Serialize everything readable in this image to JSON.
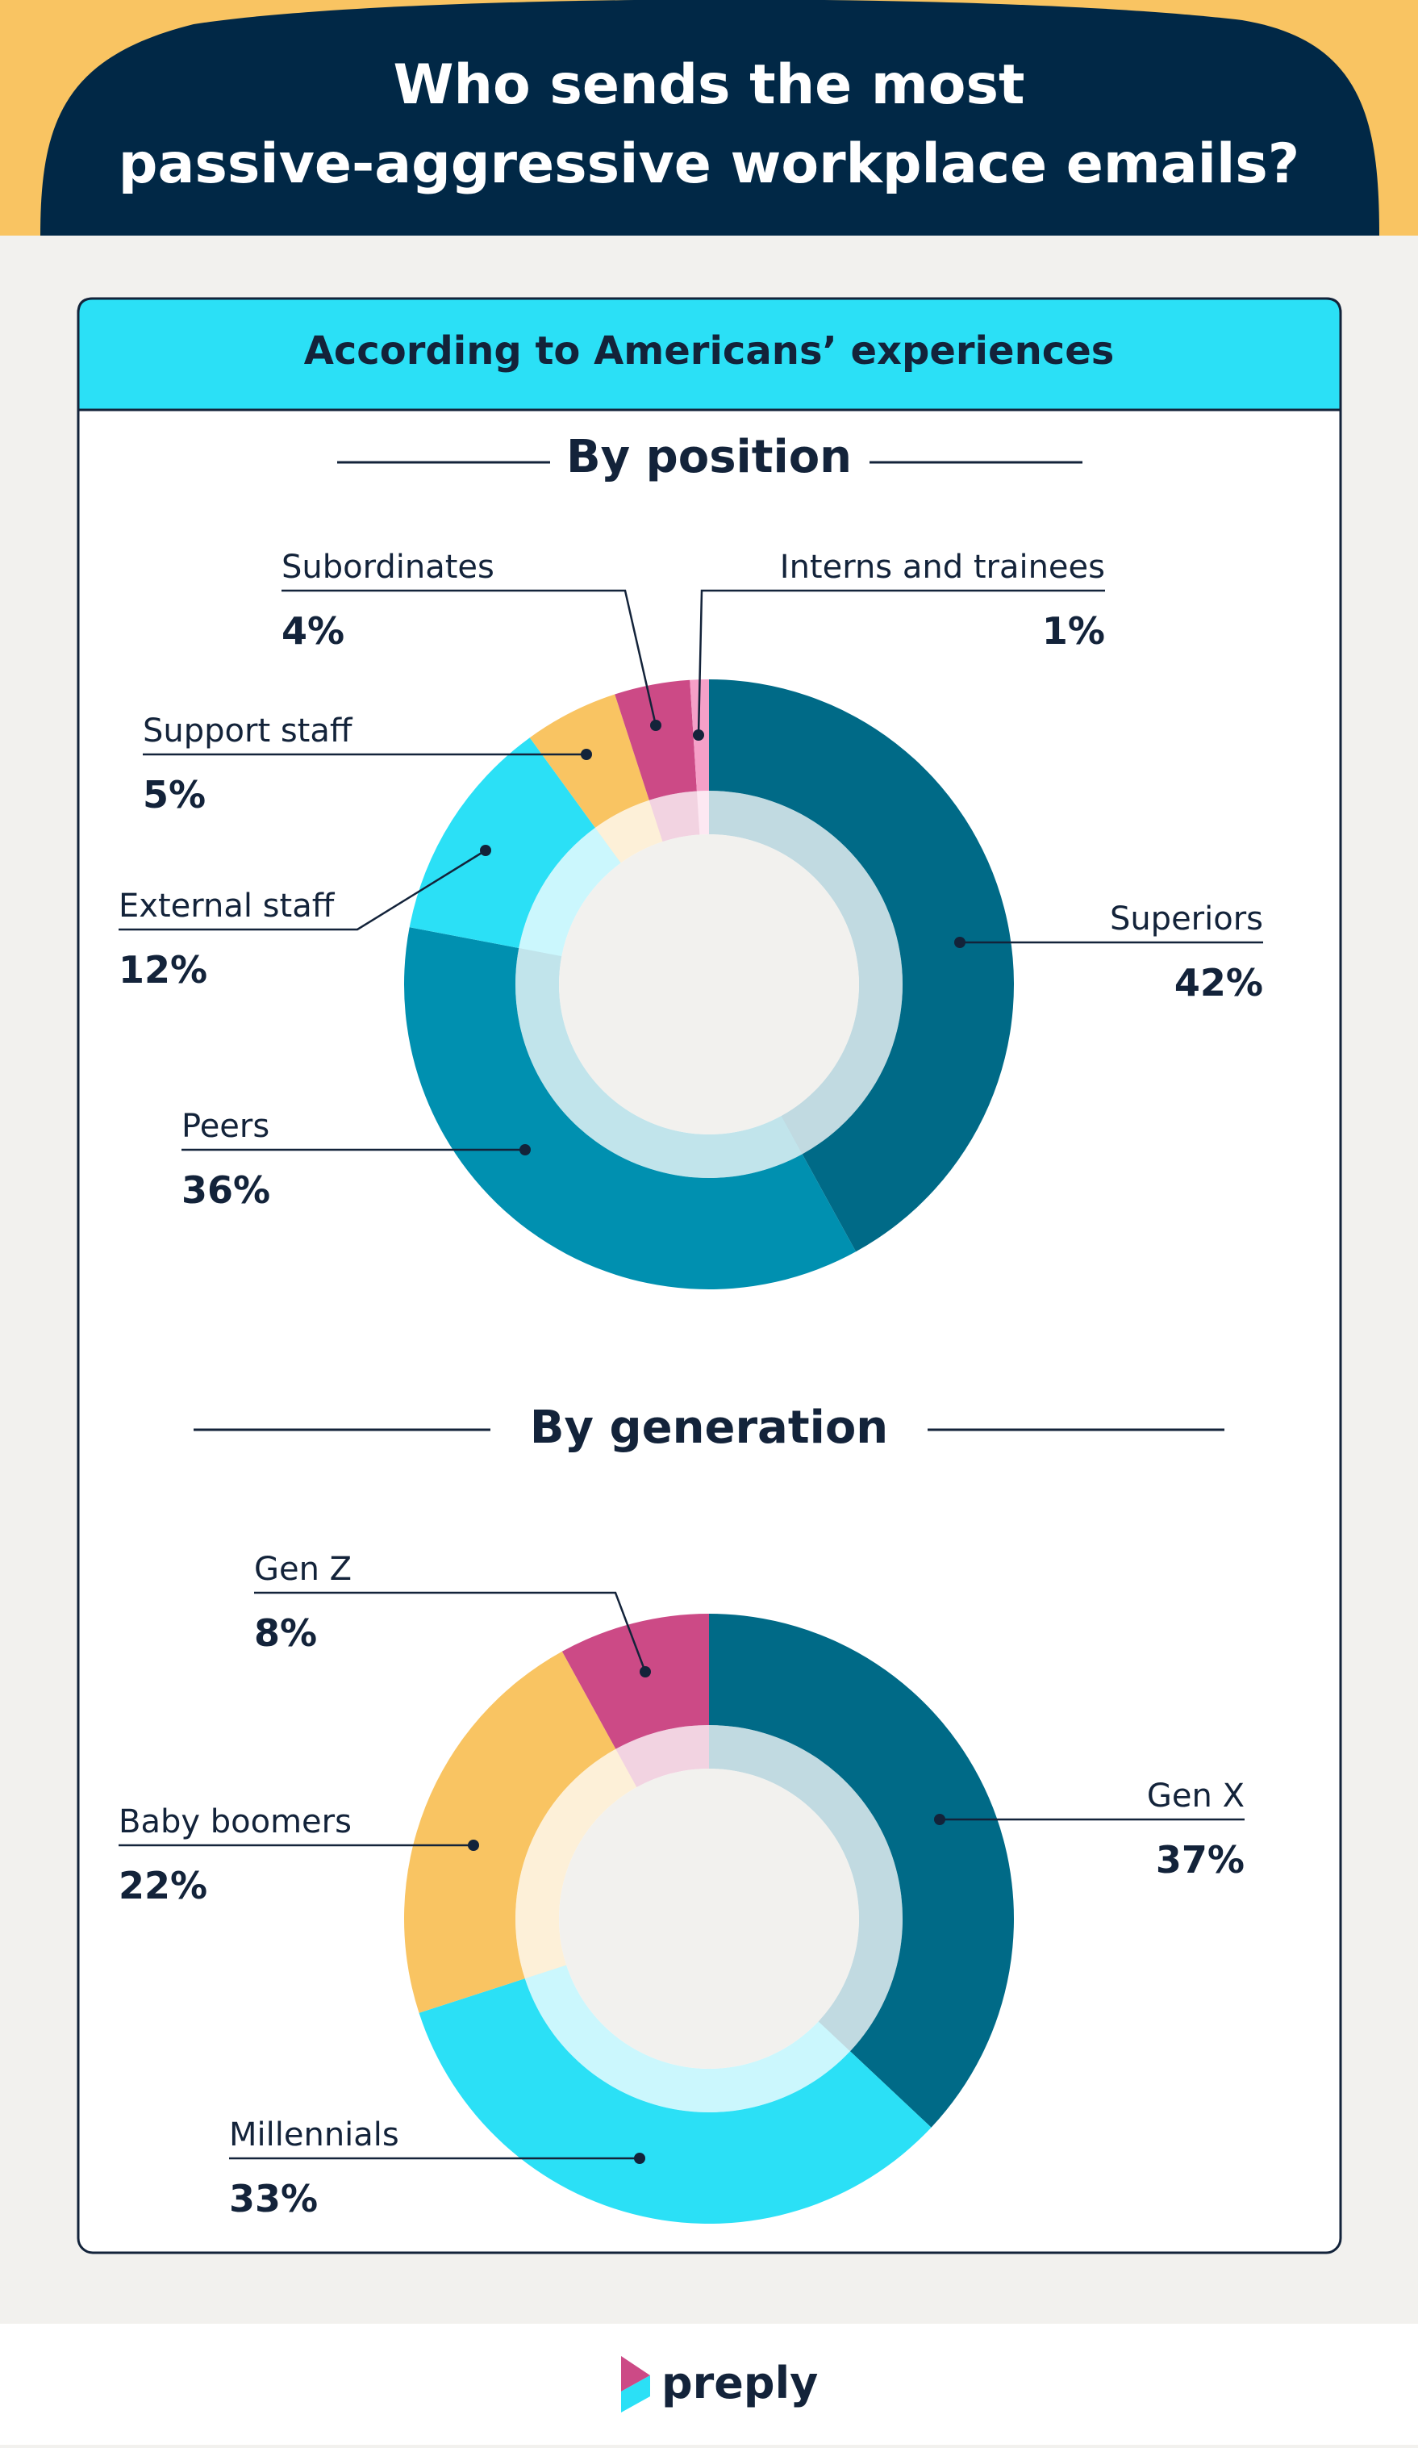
{
  "header": {
    "title_line1": "Who sends the most",
    "title_line2": "passive-aggressive workplace emails?"
  },
  "card": {
    "banner": "According to Americans’ experiences"
  },
  "footer": {
    "logo": "preply"
  },
  "colors": {
    "header_bg": "#012846",
    "header_accent": "#f9c462",
    "banner_bg": "#2be0f6",
    "dark_teal": "#006a87",
    "teal": "#0090b0",
    "cyan": "#2be0f6",
    "yellow": "#f9c462",
    "magenta": "#cc4a86",
    "pink": "#f5a0c8",
    "background": "#f2f1ee"
  },
  "chart_data": [
    {
      "type": "pie",
      "title": "By position",
      "categories": [
        "Superiors",
        "Peers",
        "External staff",
        "Support staff",
        "Subordinates",
        "Interns and trainees"
      ],
      "values": [
        42,
        36,
        12,
        5,
        4,
        1
      ],
      "labels": [
        "42%",
        "36%",
        "12%",
        "5%",
        "4%",
        "1%"
      ],
      "colors": [
        "#006a87",
        "#0090b0",
        "#2be0f6",
        "#f9c462",
        "#cc4a86",
        "#f5a0c8"
      ]
    },
    {
      "type": "pie",
      "title": "By generation",
      "categories": [
        "Gen X",
        "Millennials",
        "Baby boomers",
        "Gen Z"
      ],
      "values": [
        37,
        33,
        22,
        8
      ],
      "labels": [
        "37%",
        "33%",
        "22%",
        "8%"
      ],
      "colors": [
        "#006a87",
        "#2be0f6",
        "#f9c462",
        "#cc4a86"
      ]
    }
  ]
}
